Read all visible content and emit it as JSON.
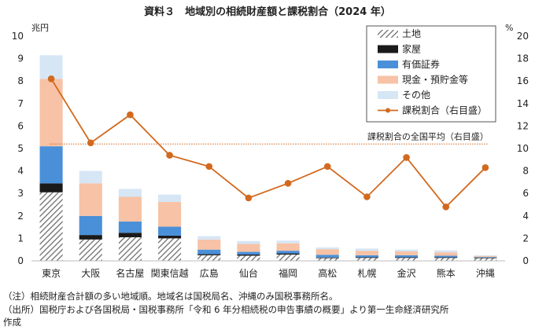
{
  "chart_data": {
    "type": "bar",
    "title": "資料３　地域別の相続財産額と課税割合（2024 年）",
    "left_unit": "兆円",
    "right_unit": "%",
    "ylim_left": [
      0,
      10
    ],
    "ylim_right": [
      0,
      20
    ],
    "yticks_left": [
      "0",
      "1",
      "2",
      "3",
      "4",
      "5",
      "6",
      "7",
      "8",
      "9",
      "10"
    ],
    "yticks_right": [
      "0",
      "2",
      "4",
      "6",
      "8",
      "10",
      "12",
      "14",
      "16",
      "18",
      "20"
    ],
    "categories": [
      "東京",
      "大阪",
      "名古屋",
      "関東信越",
      "広島",
      "仙台",
      "福岡",
      "高松",
      "札幌",
      "金沢",
      "熊本",
      "沖縄"
    ],
    "series": [
      {
        "name": "土地",
        "color": "#9a9a9a",
        "pattern": "hatch",
        "values": [
          3.05,
          0.95,
          1.05,
          1.0,
          0.25,
          0.23,
          0.28,
          0.12,
          0.13,
          0.13,
          0.13,
          0.12
        ]
      },
      {
        "name": "家屋",
        "color": "#1a1a1a",
        "values": [
          0.4,
          0.2,
          0.2,
          0.12,
          0.05,
          0.05,
          0.05,
          0.03,
          0.03,
          0.03,
          0.03,
          0.02
        ]
      },
      {
        "name": "有価証券",
        "color": "#4a90d9",
        "values": [
          1.65,
          0.85,
          0.5,
          0.4,
          0.2,
          0.12,
          0.12,
          0.12,
          0.09,
          0.09,
          0.07,
          0.03
        ]
      },
      {
        "name": "現金・預貯金等",
        "color": "#f7c2a5",
        "values": [
          3.0,
          1.45,
          1.1,
          1.1,
          0.45,
          0.35,
          0.33,
          0.25,
          0.2,
          0.17,
          0.15,
          0.05
        ]
      },
      {
        "name": "その他",
        "color": "#d6e6f5",
        "values": [
          1.05,
          0.55,
          0.35,
          0.33,
          0.15,
          0.13,
          0.12,
          0.08,
          0.1,
          0.08,
          0.09,
          0.03
        ]
      }
    ],
    "line": {
      "name": "課税割合（右目盛）",
      "color": "#d2691e",
      "values": [
        16.2,
        10.5,
        13.0,
        9.4,
        8.4,
        5.6,
        6.9,
        8.4,
        5.7,
        9.2,
        4.8,
        8.3
      ]
    },
    "reference": {
      "label": "課税割合の全国平均（右目盛）",
      "value": 10.4,
      "color": "#d2691e"
    },
    "legend_position": "top-right",
    "grid": false
  },
  "notes": [
    "（注）相続財産合計額の多い地域順。地域名は国税局名、沖縄のみ国税事務所名。",
    "（出所）国税庁および各国税局・国税事務所「令和 6 年分相続税の申告事績の概要」より第一生命経済研究所",
    "作成"
  ]
}
